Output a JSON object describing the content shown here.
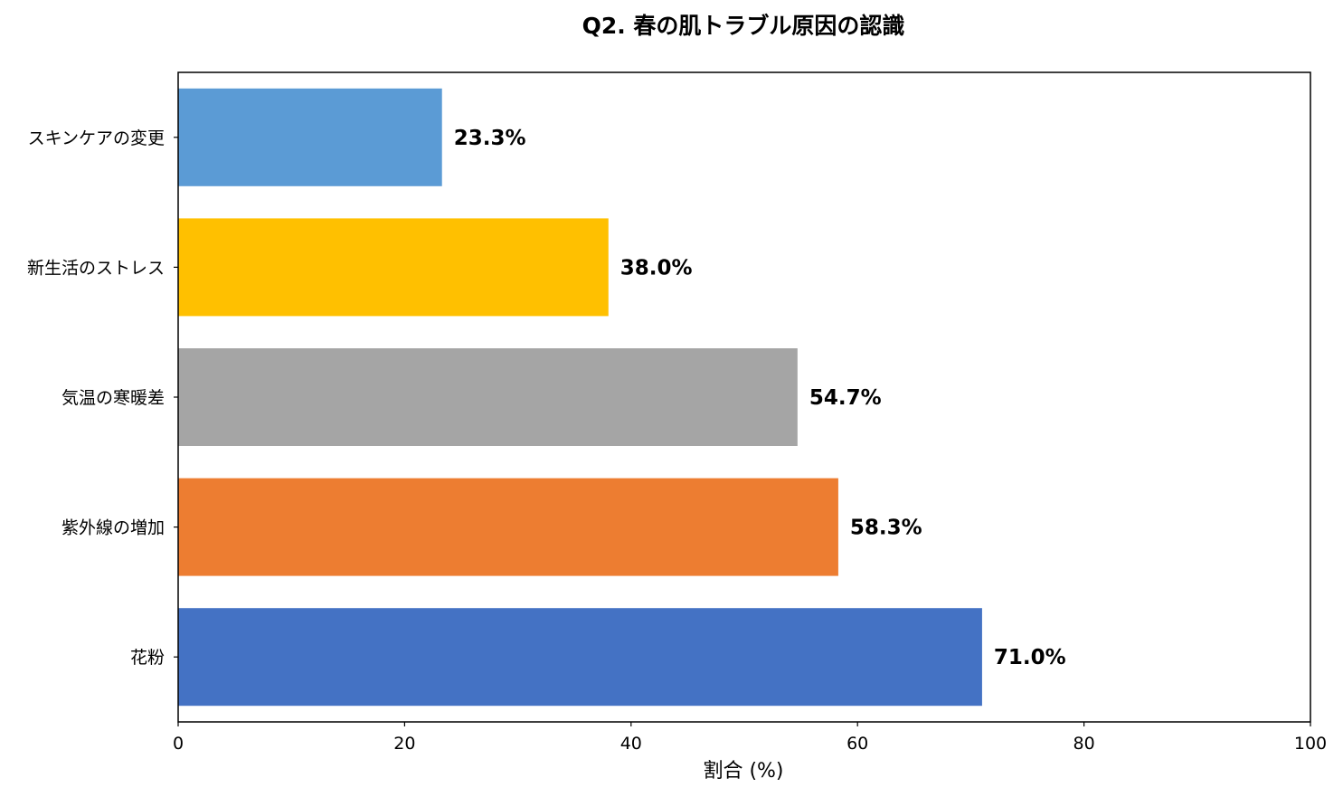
{
  "chart_data": {
    "type": "bar",
    "orientation": "horizontal",
    "title": "Q2. 春の肌トラブル原因の認識",
    "xlabel": "割合 (%)",
    "ylabel": "",
    "xlim": [
      0,
      100
    ],
    "xticks": [
      0,
      20,
      40,
      60,
      80,
      100
    ],
    "xtick_labels": [
      "0",
      "20",
      "40",
      "60",
      "80",
      "100"
    ],
    "grid": false,
    "legend": "none",
    "categories": [
      "スキンケアの変更",
      "新生活のストレス",
      "気温の寒暖差",
      "紫外線の増加",
      "花粉"
    ],
    "values": [
      23.3,
      38.0,
      54.7,
      58.3,
      71.0
    ],
    "value_labels": [
      "23.3%",
      "38.0%",
      "54.7%",
      "58.3%",
      "71.0%"
    ],
    "colors": [
      "#5b9bd5",
      "#ffc000",
      "#a5a5a5",
      "#ed7d31",
      "#4472c4"
    ]
  }
}
